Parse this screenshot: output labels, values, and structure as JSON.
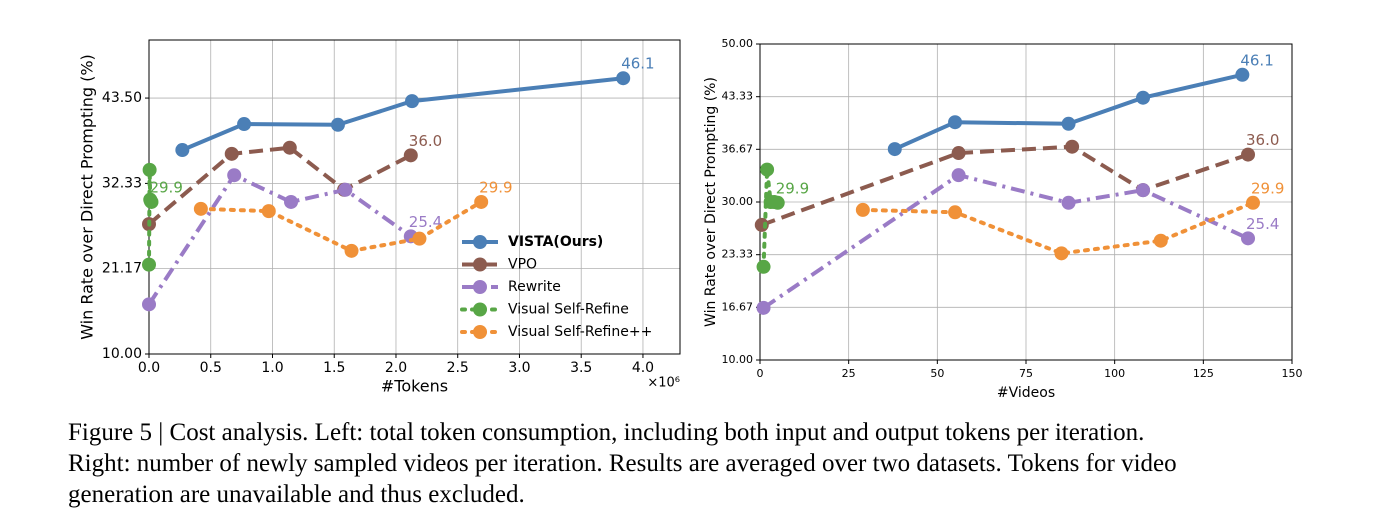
{
  "chart_data": [
    {
      "type": "line",
      "x_label": "#Tokens",
      "y_label": "Win Rate over Direct Prompting (%)",
      "x_offset_label": "×10⁶",
      "xlim": [
        0,
        4.3
      ],
      "ylim": [
        10,
        51.1
      ],
      "xticks": [
        {
          "value": 0,
          "label": "0.0"
        },
        0.5,
        {
          "value": 1,
          "label": "1.0"
        },
        1.5,
        {
          "value": 2,
          "label": "2.0"
        },
        2.5,
        {
          "value": 3,
          "label": "3.0"
        },
        3.5,
        {
          "value": 4,
          "label": "4.0"
        }
      ],
      "yticks": [
        {
          "value": 10,
          "label": "10.00"
        },
        {
          "value": 21.17,
          "label": "21.17"
        },
        {
          "value": 32.33,
          "label": "32.33"
        },
        {
          "value": 43.5,
          "label": "43.50"
        }
      ],
      "grid": true,
      "legend": "lower right",
      "series": [
        {
          "name": "VISTA(Ours)",
          "color": "#4b7fb6",
          "linestyle": "solid",
          "bold": true,
          "x": [
            0.27,
            0.77,
            1.53,
            2.13,
            3.84
          ],
          "values": [
            36.7,
            40.1,
            40.0,
            43.1,
            46.1
          ],
          "value_labels": [
            null,
            null,
            null,
            null,
            "46.1"
          ]
        },
        {
          "name": "VPO",
          "color": "#8c5b4f",
          "linestyle": "dashed",
          "x": [
            0,
            0.67,
            1.14,
            1.58,
            2.12
          ],
          "values": [
            27.0,
            36.2,
            37.0,
            31.5,
            36.0
          ],
          "value_labels": [
            null,
            null,
            null,
            null,
            "36.0"
          ]
        },
        {
          "name": "Rewrite",
          "color": "#9a7bc6",
          "linestyle": "dashdot",
          "x": [
            0,
            0.69,
            1.15,
            1.59,
            2.12
          ],
          "values": [
            16.5,
            33.4,
            29.9,
            31.5,
            25.4
          ],
          "value_labels": [
            null,
            null,
            null,
            null,
            "25.4"
          ]
        },
        {
          "name": "Visual Self-Refine",
          "color": "#58a646",
          "linestyle": "dotted",
          "x": [
            0,
            0.005,
            0.01,
            0.015,
            0.02
          ],
          "values": [
            21.7,
            34.1,
            30.2,
            30.0,
            29.9
          ],
          "value_labels": [
            null,
            null,
            null,
            null,
            "29.9"
          ]
        },
        {
          "name": "Visual Self-Refine++",
          "color": "#f09138",
          "linestyle": "dotted",
          "x": [
            0.42,
            0.97,
            1.64,
            2.19,
            2.69
          ],
          "values": [
            29.0,
            28.7,
            23.5,
            25.1,
            29.9
          ],
          "value_labels": [
            null,
            null,
            null,
            null,
            "29.9"
          ]
        }
      ]
    },
    {
      "type": "line",
      "x_label": "#Videos",
      "y_label": "Win Rate over Direct Prompting (%)",
      "xlim": [
        0,
        150
      ],
      "ylim": [
        10,
        50
      ],
      "xticks": [
        0,
        25,
        50,
        75,
        100,
        125,
        150
      ],
      "yticks": [
        {
          "value": 10,
          "label": "10.00"
        },
        {
          "value": 16.67,
          "label": "16.67"
        },
        {
          "value": 23.33,
          "label": "23.33"
        },
        {
          "value": 30,
          "label": "30.00"
        },
        {
          "value": 36.67,
          "label": "36.67"
        },
        {
          "value": 43.33,
          "label": "43.33"
        },
        {
          "value": 50,
          "label": "50.00"
        }
      ],
      "grid": true,
      "series": [
        {
          "color": "#4b7fb6",
          "linestyle": "solid",
          "x": [
            38,
            55,
            87,
            108,
            136
          ],
          "values": [
            36.7,
            40.1,
            39.9,
            43.2,
            46.1
          ],
          "value_labels": [
            null,
            null,
            null,
            null,
            "46.1"
          ]
        },
        {
          "color": "#8c5b4f",
          "linestyle": "dashed",
          "x": [
            0.5,
            56,
            88,
            108,
            137.6
          ],
          "values": [
            27.1,
            36.2,
            37.0,
            31.5,
            36.0
          ],
          "value_labels": [
            null,
            null,
            null,
            null,
            "36.0"
          ]
        },
        {
          "color": "#9a7bc6",
          "linestyle": "dashdot",
          "x": [
            1,
            56,
            87,
            108,
            137.6
          ],
          "values": [
            16.6,
            33.4,
            29.9,
            31.5,
            25.4
          ],
          "value_labels": [
            null,
            null,
            null,
            null,
            "25.4"
          ]
        },
        {
          "color": "#58a646",
          "linestyle": "dotted",
          "x": [
            1,
            2,
            3,
            4,
            5
          ],
          "values": [
            21.8,
            34.1,
            30.0,
            30.0,
            29.9
          ],
          "value_labels": [
            null,
            null,
            null,
            null,
            "29.9"
          ]
        },
        {
          "color": "#f09138",
          "linestyle": "dotted",
          "x": [
            29,
            55,
            85,
            113,
            139
          ],
          "values": [
            29.0,
            28.7,
            23.5,
            25.1,
            29.9
          ],
          "value_labels": [
            null,
            null,
            null,
            null,
            "29.9"
          ]
        }
      ]
    }
  ],
  "caption": [
    "Figure 5 | Cost analysis. Left: total token consumption, including both input and output tokens per iteration.",
    "Right: number of newly sampled videos per iteration. Results are averaged over two datasets. Tokens for video",
    "generation are unavailable and thus excluded."
  ]
}
